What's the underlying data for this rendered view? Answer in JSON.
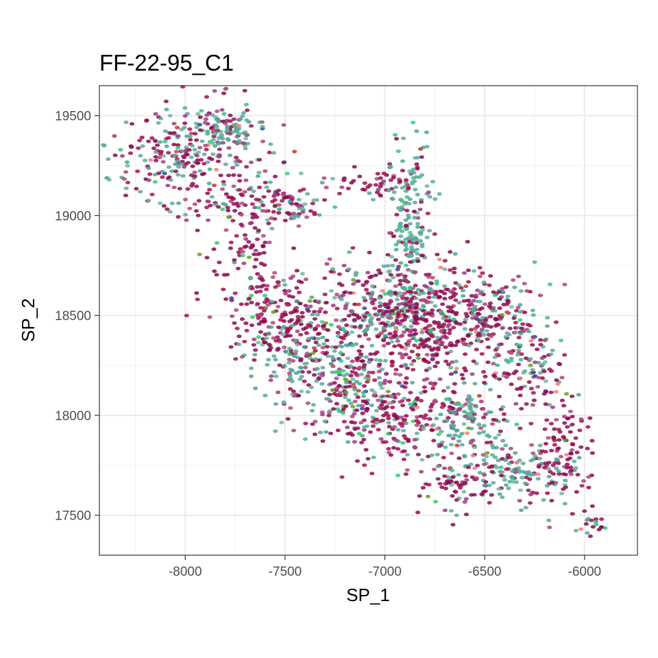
{
  "chart_data": {
    "type": "scatter",
    "title": "FF-22-95_C1",
    "xlabel": "SP_1",
    "ylabel": "SP_2",
    "xlim": [
      -8430,
      -5735
    ],
    "ylim": [
      17300,
      19650
    ],
    "xticks": [
      -8000,
      -7500,
      -7000,
      -6500,
      -6000
    ],
    "xtick_labels": [
      "-8000",
      "-7500",
      "-7000",
      "-6500",
      "-6000"
    ],
    "yticks": [
      17500,
      18000,
      18500,
      19000,
      19500
    ],
    "ytick_labels": [
      "17500",
      "18000",
      "18500",
      "19000",
      "19500"
    ],
    "grid": true,
    "legend": "none",
    "point_colors": [
      "#8b0a50",
      "#a0104f",
      "#b0457a",
      "#9b3b84",
      "#5aaa9c",
      "#4ea596",
      "#6fb89d",
      "#2ecc71",
      "#f08080",
      "#1f4e9c",
      "#6aa121",
      "#c0392b"
    ],
    "point_weights": [
      0.28,
      0.14,
      0.1,
      0.08,
      0.17,
      0.11,
      0.04,
      0.03,
      0.02,
      0.012,
      0.01,
      0.008
    ],
    "clusters": [
      {
        "cx": -7975,
        "cy": 19310,
        "sx": 200,
        "sy": 135,
        "n": 280,
        "mix": "mixed"
      },
      {
        "cx": -7790,
        "cy": 19430,
        "sx": 70,
        "sy": 45,
        "n": 70,
        "mix": "teal"
      },
      {
        "cx": -7725,
        "cy": 19080,
        "sx": 150,
        "sy": 85,
        "n": 80,
        "mix": "magenta"
      },
      {
        "cx": -7460,
        "cy": 19050,
        "sx": 70,
        "sy": 55,
        "n": 60,
        "mix": "mixed"
      },
      {
        "cx": -7690,
        "cy": 18850,
        "sx": 80,
        "sy": 70,
        "n": 55,
        "mix": "magenta"
      },
      {
        "cx": -7080,
        "cy": 19160,
        "sx": 140,
        "sy": 45,
        "n": 55,
        "mix": "magenta"
      },
      {
        "cx": -6870,
        "cy": 18950,
        "sx": 55,
        "sy": 210,
        "n": 170,
        "mix": "teal"
      },
      {
        "cx": -7000,
        "cy": 18520,
        "sx": 230,
        "sy": 150,
        "n": 380,
        "mix": "mixed"
      },
      {
        "cx": -6780,
        "cy": 18440,
        "sx": 170,
        "sy": 120,
        "n": 250,
        "mix": "magenta"
      },
      {
        "cx": -7520,
        "cy": 18500,
        "sx": 160,
        "sy": 110,
        "n": 210,
        "mix": "magenta"
      },
      {
        "cx": -7180,
        "cy": 18150,
        "sx": 180,
        "sy": 130,
        "n": 220,
        "mix": "mixed"
      },
      {
        "cx": -6890,
        "cy": 17960,
        "sx": 200,
        "sy": 120,
        "n": 200,
        "mix": "magenta"
      },
      {
        "cx": -6610,
        "cy": 17960,
        "sx": 90,
        "sy": 110,
        "n": 110,
        "mix": "teal"
      },
      {
        "cx": -6480,
        "cy": 18520,
        "sx": 120,
        "sy": 110,
        "n": 130,
        "mix": "mixed"
      },
      {
        "cx": -6300,
        "cy": 18230,
        "sx": 110,
        "sy": 150,
        "n": 140,
        "mix": "mixed"
      },
      {
        "cx": -6350,
        "cy": 17720,
        "sx": 140,
        "sy": 70,
        "n": 140,
        "mix": "teal"
      },
      {
        "cx": -6100,
        "cy": 17840,
        "sx": 70,
        "sy": 120,
        "n": 90,
        "mix": "magenta"
      },
      {
        "cx": -6630,
        "cy": 17650,
        "sx": 120,
        "sy": 60,
        "n": 60,
        "mix": "magenta"
      },
      {
        "cx": -5950,
        "cy": 17460,
        "sx": 45,
        "sy": 35,
        "n": 20,
        "mix": "magenta"
      },
      {
        "cx": -7430,
        "cy": 18260,
        "sx": 120,
        "sy": 90,
        "n": 80,
        "mix": "teal"
      }
    ]
  }
}
